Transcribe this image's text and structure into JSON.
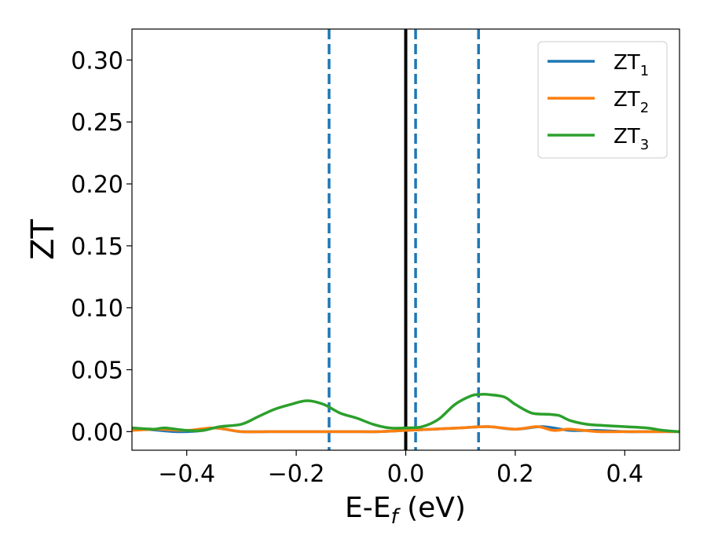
{
  "chart_data": {
    "type": "line",
    "title": "",
    "xlabel": "E-E",
    "xlabel_sub": "f",
    "xlabel_unit": " (eV)",
    "ylabel": "ZT",
    "xlim": [
      -0.5,
      0.5
    ],
    "ylim": [
      -0.015,
      0.325
    ],
    "xticks": [
      -0.4,
      -0.2,
      0.0,
      0.2,
      0.4
    ],
    "xtick_labels": [
      "−0.4",
      "−0.2",
      "0.0",
      "0.2",
      "0.4"
    ],
    "yticks": [
      0.0,
      0.05,
      0.1,
      0.15,
      0.2,
      0.25,
      0.3
    ],
    "ytick_labels": [
      "0.00",
      "0.05",
      "0.10",
      "0.15",
      "0.20",
      "0.25",
      "0.30"
    ],
    "grid": false,
    "legend_position": "top-right",
    "series": [
      {
        "name": "ZT",
        "name_sub": "1",
        "color": "#1f77b4",
        "x": [
          -0.5,
          -0.45,
          -0.42,
          -0.4,
          -0.37,
          -0.35,
          -0.33,
          -0.3,
          -0.25,
          -0.2,
          -0.15,
          -0.1,
          -0.05,
          0.0,
          0.05,
          0.1,
          0.15,
          0.2,
          0.25,
          0.3,
          0.35,
          0.4,
          0.45,
          0.5
        ],
        "values": [
          0.003,
          0.001,
          0.0,
          0.0,
          0.001,
          0.003,
          0.002,
          0.0,
          0.0,
          0.0,
          0.0,
          0.0,
          0.0,
          0.001,
          0.002,
          0.003,
          0.004,
          0.002,
          0.004,
          0.001,
          0.001,
          0.0,
          0.0,
          0.0
        ]
      },
      {
        "name": "ZT",
        "name_sub": "2",
        "color": "#ff7f0e",
        "x": [
          -0.5,
          -0.45,
          -0.4,
          -0.35,
          -0.3,
          -0.25,
          -0.2,
          -0.15,
          -0.1,
          -0.05,
          0.0,
          0.05,
          0.1,
          0.15,
          0.2,
          0.24,
          0.27,
          0.3,
          0.35,
          0.4,
          0.45,
          0.5
        ],
        "values": [
          0.001,
          0.002,
          0.001,
          0.003,
          0.0,
          0.0,
          0.0,
          0.0,
          0.0,
          0.0,
          0.001,
          0.002,
          0.003,
          0.004,
          0.002,
          0.004,
          0.001,
          0.002,
          0.0,
          0.0,
          0.0,
          0.0
        ]
      },
      {
        "name": "ZT",
        "name_sub": "3",
        "color": "#2ca02c",
        "x": [
          -0.5,
          -0.46,
          -0.44,
          -0.4,
          -0.37,
          -0.34,
          -0.3,
          -0.27,
          -0.24,
          -0.21,
          -0.18,
          -0.15,
          -0.12,
          -0.09,
          -0.06,
          -0.03,
          0.0,
          0.03,
          0.06,
          0.09,
          0.12,
          0.135,
          0.15,
          0.18,
          0.2,
          0.23,
          0.26,
          0.28,
          0.3,
          0.33,
          0.36,
          0.4,
          0.44,
          0.47,
          0.5
        ],
        "values": [
          0.003,
          0.002,
          0.003,
          0.001,
          0.001,
          0.004,
          0.006,
          0.012,
          0.018,
          0.022,
          0.025,
          0.022,
          0.015,
          0.011,
          0.006,
          0.003,
          0.003,
          0.004,
          0.01,
          0.022,
          0.029,
          0.03,
          0.03,
          0.028,
          0.022,
          0.015,
          0.014,
          0.013,
          0.009,
          0.006,
          0.005,
          0.004,
          0.003,
          0.001,
          0.0
        ]
      }
    ],
    "vertical_lines": [
      {
        "x": 0.0,
        "style": "solid",
        "color": "#000000"
      },
      {
        "x": -0.14,
        "style": "dashed",
        "color": "#1f77b4"
      },
      {
        "x": 0.018,
        "style": "dashed",
        "color": "#1f77b4"
      },
      {
        "x": 0.133,
        "style": "dashed",
        "color": "#1f77b4"
      }
    ]
  }
}
